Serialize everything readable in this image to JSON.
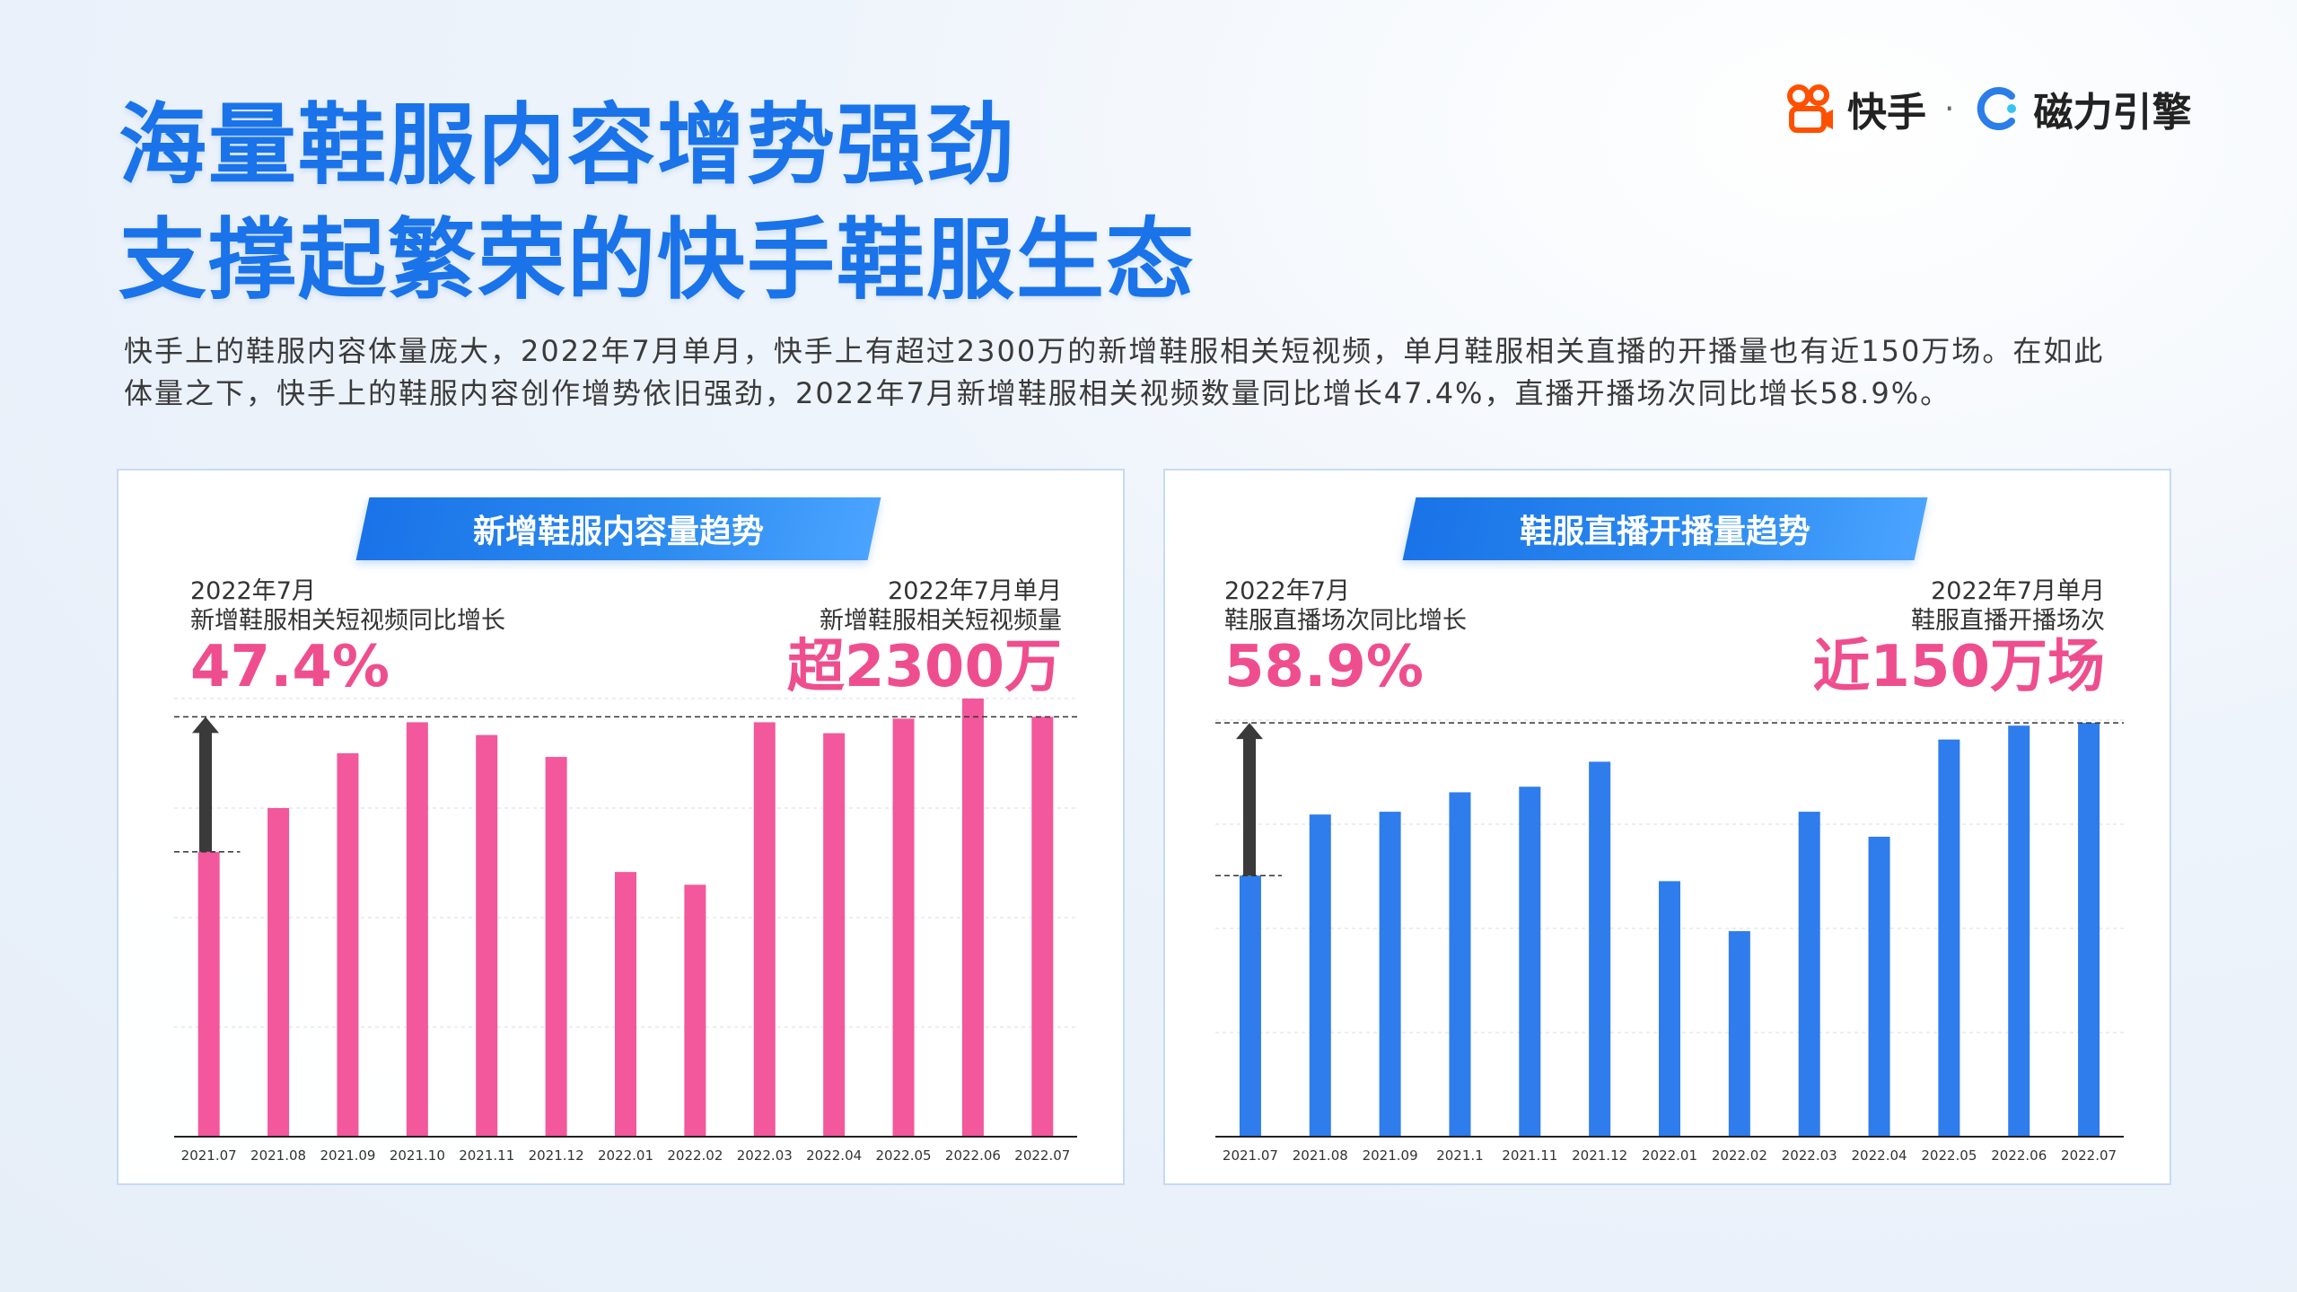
{
  "title": {
    "line1": "海量鞋服内容增势强劲",
    "line2": "支撑起繁荣的快手鞋服生态"
  },
  "logo": {
    "brand": "快手",
    "sep": "·",
    "partner": "磁力引擎",
    "brand_color": "#ff5000",
    "partner_color": "#2b7de9"
  },
  "description": "快手上的鞋服内容体量庞大，2022年7月单月，快手上有超过2300万的新增鞋服相关短视频，单月鞋服相关直播的开播量也有近150万场。在如此体量之下，快手上的鞋服内容创作增势依旧强劲，2022年7月新增鞋服相关视频数量同比增长47.4%，直播开播场次同比增长58.9%。",
  "left_panel": {
    "pill": "新增鞋服内容量趋势",
    "stat_left_label1": "2022年7月",
    "stat_left_label2": "新增鞋服相关短视频同比增长",
    "stat_left_value": "47.4%",
    "stat_right_label1": "2022年7月单月",
    "stat_right_label2": "新增鞋服相关短视频量",
    "stat_right_value": "超2300万"
  },
  "right_panel": {
    "pill": "鞋服直播开播量趋势",
    "stat_left_label1": "2022年7月",
    "stat_left_label2": "鞋服直播场次同比增长",
    "stat_left_value": "58.9%",
    "stat_right_label1": "2022年7月单月",
    "stat_right_label2": "鞋服直播开播场次",
    "stat_right_value": "近150万场"
  },
  "chart_data": [
    {
      "type": "bar",
      "title": "新增鞋服内容量趋势",
      "categories": [
        "2021.07",
        "2021.08",
        "2021.09",
        "2021.10",
        "2021.11",
        "2021.12",
        "2022.01",
        "2022.02",
        "2022.03",
        "2022.04",
        "2022.05",
        "2022.06",
        "2022.07"
      ],
      "values": [
        1560,
        1800,
        2100,
        2270,
        2200,
        2080,
        1450,
        1380,
        2270,
        2210,
        2290,
        2400,
        2300
      ],
      "ylim": [
        0,
        2400
      ],
      "color": "#f2589b",
      "grid": true
    },
    {
      "type": "bar",
      "title": "鞋服直播开播量趋势",
      "categories": [
        "2021.07",
        "2021.08",
        "2021.09",
        "2021.1",
        "2021.11",
        "2021.12",
        "2022.01",
        "2022.02",
        "2022.03",
        "2022.04",
        "2022.05",
        "2022.06",
        "2022.07"
      ],
      "values": [
        94,
        116,
        117,
        124,
        126,
        135,
        92,
        74,
        117,
        108,
        143,
        148,
        149
      ],
      "ylim": [
        0,
        150
      ],
      "color": "#2f7cec",
      "grid": true
    }
  ]
}
